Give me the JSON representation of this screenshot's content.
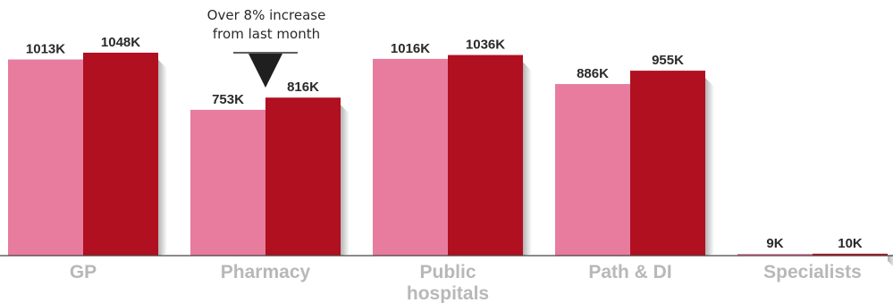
{
  "chart_data": {
    "type": "bar",
    "categories": [
      "GP",
      "Pharmacy",
      "Public hospitals",
      "Path & DI",
      "Specialists"
    ],
    "category_lines": [
      [
        "GP"
      ],
      [
        "Pharmacy"
      ],
      [
        "Public",
        "hospitals"
      ],
      [
        "Path & DI"
      ],
      [
        "Specialists"
      ]
    ],
    "series": [
      {
        "values": [
          1013,
          753,
          1016,
          886,
          9
        ],
        "labels": [
          "1013K",
          "753K",
          "1016K",
          "886K",
          "9K"
        ],
        "color": "#e77c9f"
      },
      {
        "values": [
          1048,
          816,
          1036,
          955,
          10
        ],
        "labels": [
          "1048K",
          "816K",
          "1036K",
          "955K",
          "10K"
        ],
        "color": "#b01020"
      }
    ],
    "ylim": [
      0,
      1200
    ],
    "grid": false,
    "annotations": [
      {
        "text_lines": [
          "Over 8% increase",
          "from last month"
        ],
        "category": "Pharmacy",
        "marker": "down-triangle"
      }
    ],
    "colors": {
      "baseline": "#444444",
      "category_text": "#b8b8b8",
      "label_text": "#2a2a2a"
    }
  }
}
